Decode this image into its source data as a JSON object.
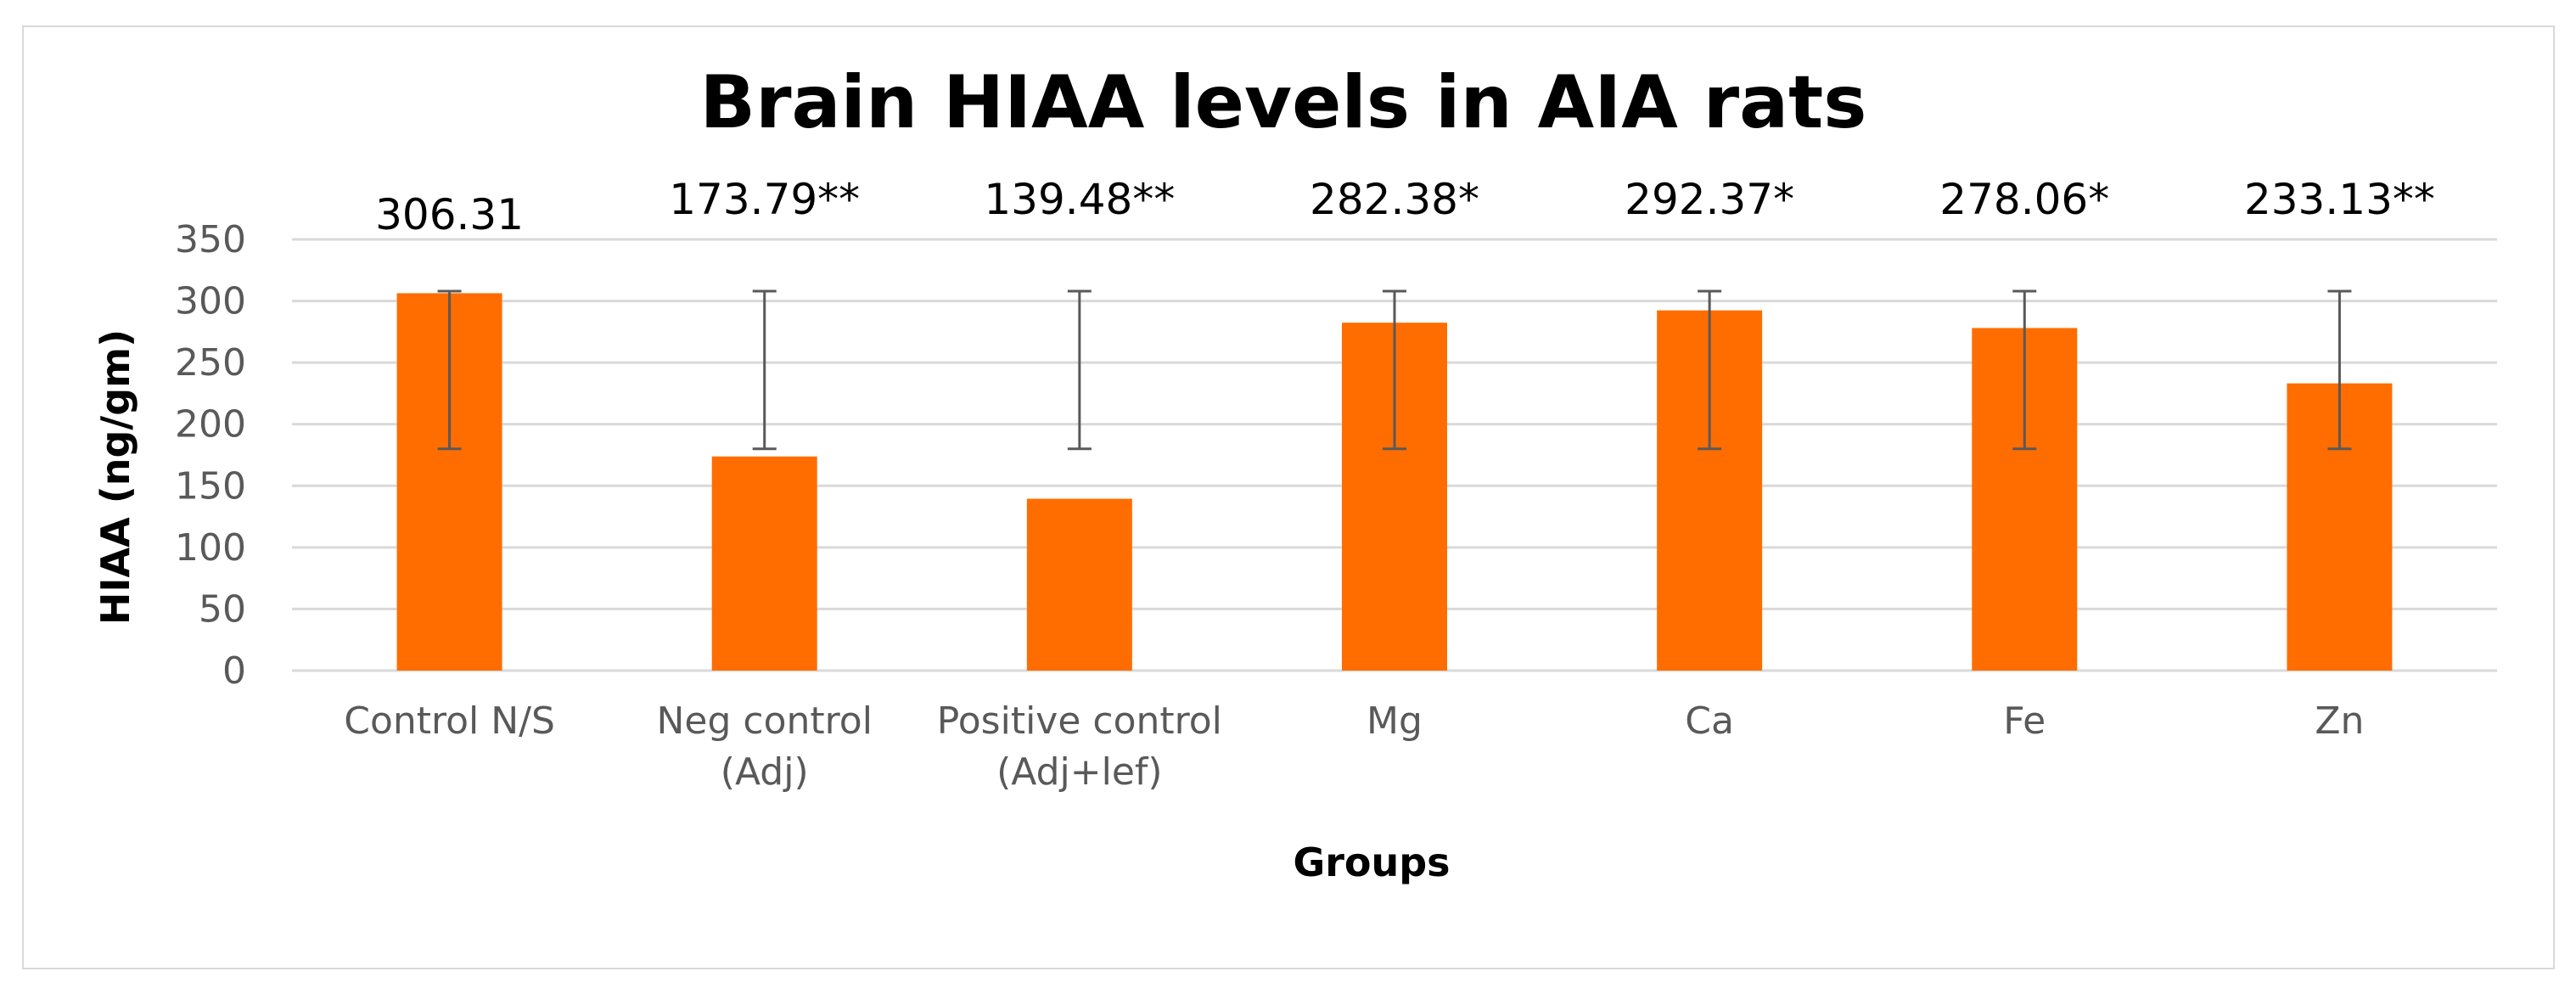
{
  "chart_data": {
    "type": "bar",
    "title": "Brain HIAA levels in AIA rats",
    "xlabel": "Groups",
    "ylabel": "HIAA (ng/gm)",
    "ylim": [
      0,
      350
    ],
    "yticks": [
      0,
      50,
      100,
      150,
      200,
      250,
      300,
      350
    ],
    "grid": true,
    "legend": "none",
    "categories": [
      [
        "Control N/S"
      ],
      [
        "Neg control",
        "(Adj)"
      ],
      [
        "Positive control",
        "(Adj+lef)"
      ],
      [
        "Mg"
      ],
      [
        "Ca"
      ],
      [
        "Fe"
      ],
      [
        "Zn"
      ]
    ],
    "values": [
      306.31,
      173.79,
      139.48,
      282.38,
      292.37,
      278.06,
      233.13
    ],
    "data_labels": [
      "306.31",
      "173.79**",
      "139.48**",
      "282.38*",
      "292.37*",
      "278.06*",
      "233.13**"
    ],
    "error_bars": [
      {
        "low": 180,
        "high": 308
      },
      {
        "low": 180,
        "high": 308
      },
      {
        "low": 180,
        "high": 308
      },
      {
        "low": 180,
        "high": 308
      },
      {
        "low": 180,
        "high": 308
      },
      {
        "low": 180,
        "high": 308
      },
      {
        "low": 180,
        "high": 308
      }
    ],
    "colors": {
      "bar": "#FF6D00",
      "grid": "#D9D9D9",
      "error_bar": "#595959",
      "frame": "#D9D9D9"
    }
  }
}
